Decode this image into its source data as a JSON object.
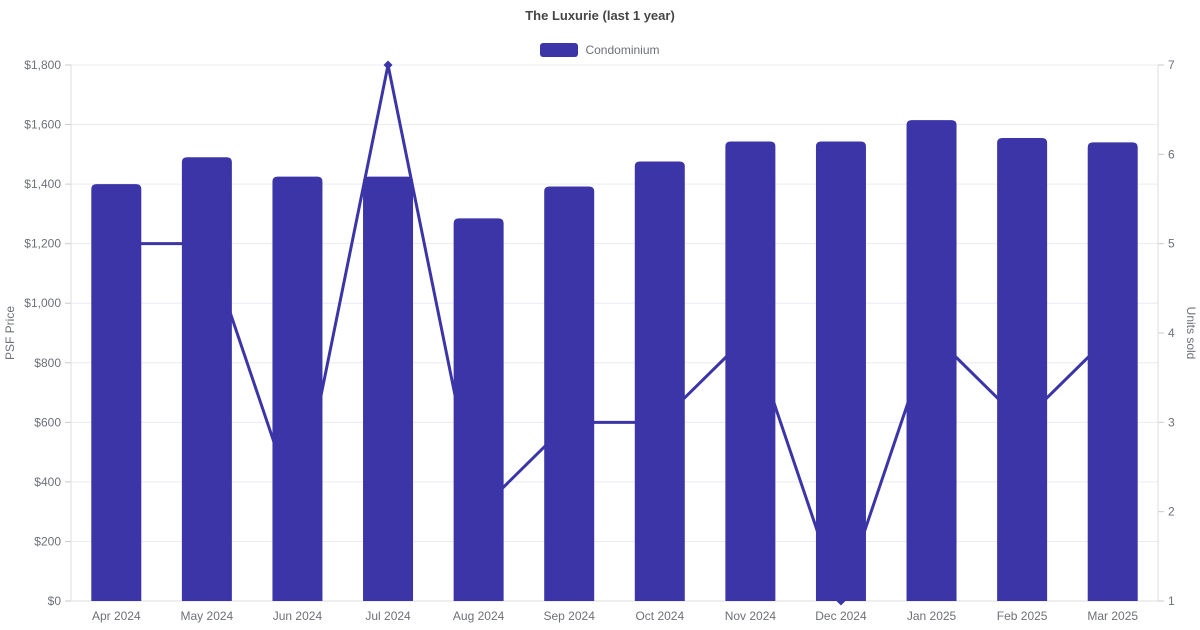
{
  "header": {
    "title": "The Luxurie (last 1 year)",
    "legend": {
      "items": [
        {
          "label": "Condominium",
          "color": "#3B35A8"
        }
      ]
    }
  },
  "chart_data": {
    "type": "bar",
    "title": "The Luxurie (last 1 year)",
    "categories": [
      "Apr 2024",
      "May 2024",
      "Jun 2024",
      "Jul 2024",
      "Aug 2024",
      "Sep 2024",
      "Oct 2024",
      "Nov 2024",
      "Dec 2024",
      "Jan 2025",
      "Feb 2025",
      "Mar 2025"
    ],
    "series": [
      {
        "name": "Condominium",
        "type": "bar",
        "yaxis": "left",
        "color": "#3B35A8",
        "values": [
          1400,
          1490,
          1425,
          1425,
          1285,
          1392,
          1476,
          1543,
          1543,
          1615,
          1555,
          1540
        ]
      },
      {
        "name": "Units sold",
        "type": "line",
        "yaxis": "right",
        "color": "#3B35A8",
        "marker": "diamond",
        "values": [
          5,
          5,
          2,
          7,
          2,
          3,
          3,
          4,
          1,
          4,
          3,
          4
        ]
      }
    ],
    "axes": {
      "left": {
        "label": "PSF Price",
        "min": 0,
        "max": 1800,
        "step": 200,
        "tick_prefix": "$",
        "thousands_separator": ","
      },
      "right": {
        "label": "Units sold",
        "min": 1,
        "max": 7,
        "step": 1
      },
      "x": {
        "labels": [
          "Apr 2024",
          "May 2024",
          "Jun 2024",
          "Jul 2024",
          "Aug 2024",
          "Sep 2024",
          "Oct 2024",
          "Nov 2024",
          "Dec 2024",
          "Jan 2025",
          "Feb 2025",
          "Mar 2025"
        ]
      }
    },
    "grid": {
      "horizontal": true,
      "vertical": false
    },
    "legend_position": "top",
    "colors": {
      "bar": "#3B35A8",
      "line": "#3B35A8",
      "grid_line": "#E9ECF2",
      "axis_line": "#DEDEDE",
      "tick": "#C9C9C9",
      "axis_text": "#6E7079",
      "title_text": "#464646",
      "background": "#FFFFFF"
    }
  }
}
